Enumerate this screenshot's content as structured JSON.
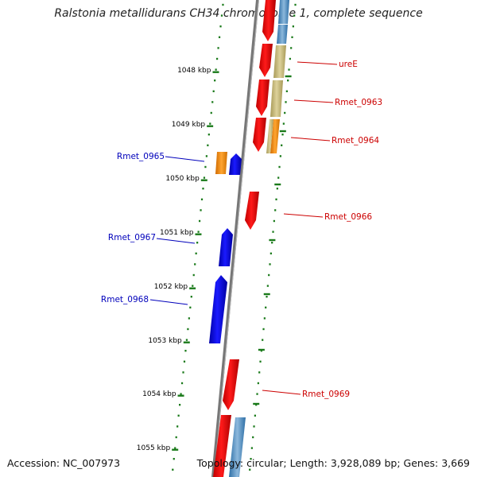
{
  "title": "Ralstonia metallidurans CH34 chromosome 1, complete sequence",
  "accession": "Accession: NC_007973",
  "summary": "Topology: circular; Length: 3,928,089 bp; Genes: 3,669",
  "colors": {
    "forward_gene": "#ff0000",
    "reverse_gene": "#0000ff",
    "rna_orange": "#ff9a1c",
    "blue_feature": "#4a8ec4",
    "tan_feature": "#c8bb7a",
    "tick_marks": "#1a7a1a",
    "backbone": "#777777",
    "label_forward": "#cc0000",
    "label_reverse": "#0000bb"
  },
  "ticks": [
    "1048 kbp",
    "1049 kbp",
    "1050 kbp",
    "1051 kbp",
    "1052 kbp",
    "1053 kbp",
    "1054 kbp",
    "1055 kbp"
  ],
  "genes": [
    {
      "label": "",
      "strand": "forward"
    },
    {
      "label": "ureE",
      "strand": "forward"
    },
    {
      "label": "Rmet_0963",
      "strand": "forward"
    },
    {
      "label": "Rmet_0964",
      "strand": "forward"
    },
    {
      "label": "Rmet_0965",
      "strand": "reverse"
    },
    {
      "label": "Rmet_0966",
      "strand": "forward"
    },
    {
      "label": "Rmet_0967",
      "strand": "reverse"
    },
    {
      "label": "Rmet_0968",
      "strand": "reverse"
    },
    {
      "label": "Rmet_0969",
      "strand": "forward"
    },
    {
      "label": "",
      "strand": "forward"
    }
  ]
}
